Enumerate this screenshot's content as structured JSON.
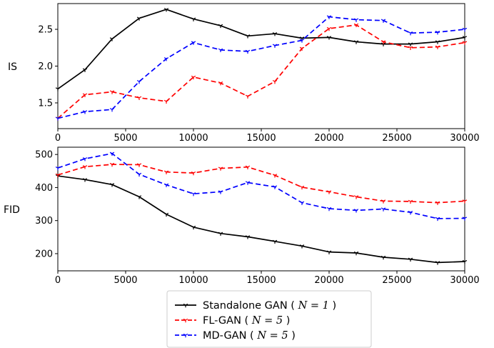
{
  "chart_data": [
    {
      "type": "line",
      "ylabel": "IS",
      "xlabel": "",
      "xlim": [
        0,
        30000
      ],
      "ylim": [
        1.15,
        2.85
      ],
      "xticks": [
        0,
        5000,
        10000,
        15000,
        20000,
        25000,
        30000
      ],
      "yticks": [
        1.5,
        2.0,
        2.5
      ],
      "ytick_labels": [
        "1.5",
        "2.0",
        "2.5"
      ],
      "x": [
        0,
        2000,
        4000,
        6000,
        8000,
        10000,
        12000,
        14000,
        16000,
        18000,
        20000,
        22000,
        24000,
        26000,
        28000,
        30000
      ],
      "series": [
        {
          "name": "Standalone GAN",
          "color": "#000000",
          "dash": "solid",
          "values": [
            1.69,
            1.95,
            2.37,
            2.65,
            2.77,
            2.64,
            2.55,
            2.41,
            2.44,
            2.38,
            2.39,
            2.33,
            2.3,
            2.3,
            2.33,
            2.39
          ]
        },
        {
          "name": "FL-GAN",
          "color": "#ff0000",
          "dash": "dashed",
          "values": [
            1.29,
            1.61,
            1.65,
            1.57,
            1.52,
            1.85,
            1.77,
            1.59,
            1.79,
            2.24,
            2.51,
            2.56,
            2.33,
            2.25,
            2.26,
            2.32
          ]
        },
        {
          "name": "MD-GAN",
          "color": "#0000ff",
          "dash": "dashed",
          "values": [
            1.29,
            1.38,
            1.41,
            1.79,
            2.1,
            2.32,
            2.22,
            2.2,
            2.28,
            2.35,
            2.67,
            2.63,
            2.62,
            2.45,
            2.46,
            2.5
          ]
        }
      ]
    },
    {
      "type": "line",
      "ylabel": "FID",
      "xlabel": "",
      "xlim": [
        0,
        30000
      ],
      "ylim": [
        148,
        522
      ],
      "xticks": [
        0,
        5000,
        10000,
        15000,
        20000,
        25000,
        30000
      ],
      "yticks": [
        200,
        300,
        400,
        500
      ],
      "ytick_labels": [
        "200",
        "300",
        "400",
        "500"
      ],
      "x": [
        0,
        2000,
        4000,
        6000,
        8000,
        10000,
        12000,
        14000,
        16000,
        18000,
        20000,
        22000,
        24000,
        26000,
        28000,
        30000
      ],
      "series": [
        {
          "name": "Standalone GAN",
          "color": "#000000",
          "dash": "solid",
          "values": [
            435,
            424,
            409,
            372,
            319,
            280,
            261,
            251,
            237,
            223,
            205,
            202,
            189,
            183,
            173,
            176
          ]
        },
        {
          "name": "FL-GAN",
          "color": "#ff0000",
          "dash": "dashed",
          "values": [
            438,
            463,
            470,
            469,
            447,
            444,
            458,
            462,
            437,
            401,
            387,
            372,
            359,
            358,
            354,
            359
          ]
        },
        {
          "name": "MD-GAN",
          "color": "#0000ff",
          "dash": "dashed",
          "values": [
            459,
            487,
            503,
            440,
            408,
            381,
            387,
            415,
            402,
            354,
            336,
            331,
            335,
            325,
            306,
            307
          ]
        }
      ]
    }
  ],
  "legend": {
    "entries": [
      {
        "label": "Standalone GAN",
        "math": "N = 1",
        "color": "#000000",
        "dash": "solid"
      },
      {
        "label": "FL-GAN",
        "math": "N = 5",
        "color": "#ff0000",
        "dash": "dashed"
      },
      {
        "label": "MD-GAN",
        "math": "N = 5",
        "color": "#0000ff",
        "dash": "dashed"
      }
    ],
    "placement": "bottom-center"
  }
}
